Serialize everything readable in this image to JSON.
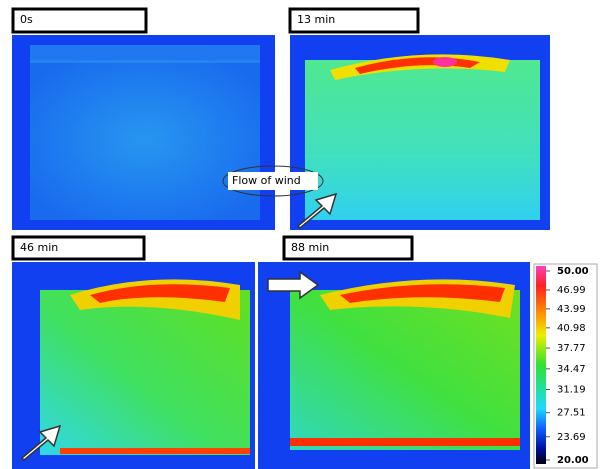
{
  "panels": [
    {
      "label": "0s"
    },
    {
      "label": "13 min"
    },
    {
      "label": "46 min"
    },
    {
      "label": "88 min"
    }
  ],
  "annotation": "Flow of wind",
  "colorbar": {
    "ticks": [
      {
        "value": 50,
        "label": "50.00"
      },
      {
        "value": 46.99,
        "label": "46.99"
      },
      {
        "value": 43.99,
        "label": "43.99"
      },
      {
        "value": 40.98,
        "label": "40.98"
      },
      {
        "value": 37.77,
        "label": "37.77"
      },
      {
        "value": 34.47,
        "label": "34.47"
      },
      {
        "value": 31.19,
        "label": "31.19"
      },
      {
        "value": 27.51,
        "label": "27.51"
      },
      {
        "value": 23.69,
        "label": "23.69"
      },
      {
        "value": 20,
        "label": "20.00"
      }
    ]
  }
}
